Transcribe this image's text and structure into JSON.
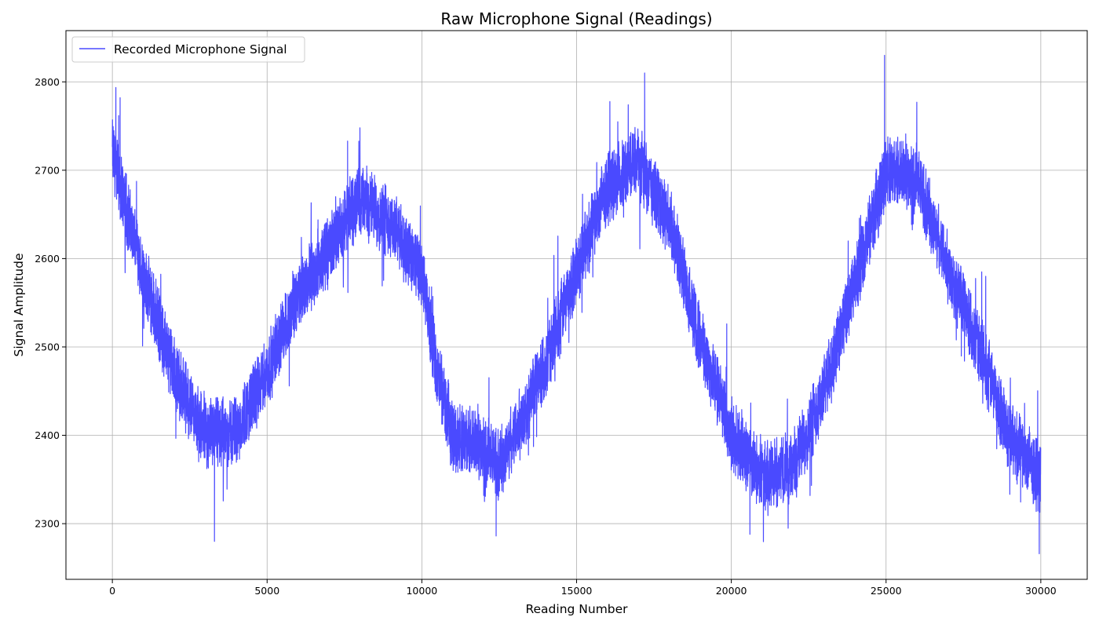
{
  "chart_data": {
    "type": "line",
    "title": "Raw Microphone Signal (Readings)",
    "xlabel": "Reading Number",
    "ylabel": "Signal Amplitude",
    "xlim": [
      -1500,
      31500
    ],
    "ylim": [
      2237,
      2858
    ],
    "xticks": [
      0,
      5000,
      10000,
      15000,
      20000,
      25000,
      30000
    ],
    "yticks": [
      2300,
      2400,
      2500,
      2600,
      2700,
      2800
    ],
    "grid": true,
    "legend_position": "top-left",
    "series": [
      {
        "name": "Recorded Microphone Signal",
        "color": "#4a4aff",
        "n_points": 30000,
        "envelope": {
          "x": [
            0,
            1000,
            2000,
            3000,
            4000,
            5000,
            6000,
            7000,
            8000,
            9000,
            10000,
            10500,
            11000,
            12000,
            12500,
            13000,
            14000,
            15000,
            16000,
            17000,
            18000,
            19000,
            20000,
            21000,
            22000,
            23000,
            24000,
            25000,
            26000,
            27000,
            28000,
            29000,
            30000
          ],
          "y": [
            2720,
            2580,
            2470,
            2400,
            2405,
            2470,
            2560,
            2610,
            2670,
            2640,
            2580,
            2470,
            2400,
            2385,
            2365,
            2400,
            2480,
            2590,
            2680,
            2710,
            2640,
            2510,
            2400,
            2355,
            2365,
            2450,
            2570,
            2700,
            2690,
            2590,
            2500,
            2400,
            2350
          ]
        },
        "peaks": [
          {
            "x": 250,
            "y": 2782
          },
          {
            "x": 3300,
            "y": 2280
          },
          {
            "x": 7600,
            "y": 2733
          },
          {
            "x": 8000,
            "y": 2748
          },
          {
            "x": 12400,
            "y": 2286
          },
          {
            "x": 17200,
            "y": 2810
          },
          {
            "x": 20600,
            "y": 2288
          },
          {
            "x": 24950,
            "y": 2830
          },
          {
            "x": 29950,
            "y": 2266
          }
        ]
      }
    ]
  }
}
